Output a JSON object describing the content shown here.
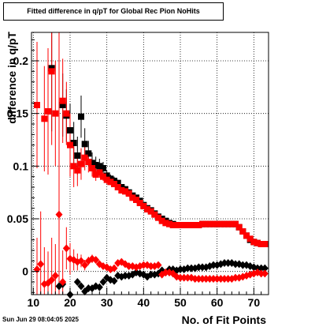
{
  "timestamp": "Sun Jun 29 08:04:05 2025",
  "chart_data": {
    "type": "scatter",
    "title": "Fitted difference in q/pT for Global Rec Pion NoHits",
    "xlabel": "No. of Fit Points",
    "ylabel": "difference in q/pT",
    "xlim": [
      9.5,
      74
    ],
    "ylim": [
      -0.022,
      0.227
    ],
    "xticks": [
      10,
      20,
      30,
      40,
      50,
      60,
      70
    ],
    "yticks": [
      0,
      0.05,
      0.1,
      0.15,
      0.2
    ],
    "ytick_labels": [
      "0",
      "0.05",
      "0.1",
      "0.15",
      "0.2"
    ],
    "grid": true,
    "series": [
      {
        "marker": "square",
        "color": "#000000",
        "x": [
          15,
          18,
          19,
          20,
          21,
          22,
          23,
          24,
          25,
          26,
          27,
          28,
          29,
          30,
          31,
          32,
          33,
          34,
          35,
          36,
          37,
          38,
          39,
          40,
          41,
          42,
          43,
          44,
          45,
          46,
          47,
          48,
          49,
          50,
          51,
          52,
          53,
          54,
          55,
          56,
          57,
          58,
          59,
          60,
          61,
          62,
          63,
          64,
          65,
          66,
          67,
          68,
          69,
          70,
          71,
          72,
          73
        ],
        "y": [
          0.193,
          0.158,
          0.148,
          0.134,
          0.122,
          0.11,
          0.147,
          0.121,
          0.112,
          0.103,
          0.101,
          0.1,
          0.098,
          0.091,
          0.088,
          0.086,
          0.084,
          0.08,
          0.078,
          0.075,
          0.072,
          0.07,
          0.067,
          0.063,
          0.06,
          0.058,
          0.055,
          0.052,
          0.05,
          0.048,
          0.046,
          0.045,
          0.044,
          0.044,
          0.044,
          0.044,
          0.044,
          0.044,
          0.044,
          0.045,
          0.045,
          0.045,
          0.045,
          0.045,
          0.045,
          0.045,
          0.045,
          0.045,
          0.045,
          0.042,
          0.038,
          0.034,
          0.03,
          0.028,
          0.027,
          0.026,
          0.026
        ],
        "yerr": [
          0.06,
          0.03,
          0.025,
          0.025,
          0.02,
          0.018,
          0.02,
          0.015,
          0.012,
          0.01,
          0.008,
          0.007,
          0.006,
          0.005,
          0.004,
          0.004,
          0.003,
          0.003,
          0.003,
          0.003,
          0.002,
          0.002,
          0.002,
          0.002,
          0.002,
          0.002,
          0.002,
          0.002,
          0.002,
          0.002,
          0.002,
          0.002,
          0.002,
          0.002,
          0.002,
          0.002,
          0.002,
          0.002,
          0.002,
          0.002,
          0.002,
          0.002,
          0.002,
          0.002,
          0.002,
          0.002,
          0.002,
          0.002,
          0.002,
          0.002,
          0.002,
          0.002,
          0.002,
          0.002,
          0.002,
          0.002,
          0.002
        ]
      },
      {
        "marker": "square",
        "color": "#ff0000",
        "x": [
          11,
          13,
          14,
          15,
          16,
          18,
          19,
          20,
          21,
          22,
          23,
          24,
          25,
          26,
          27,
          28,
          29,
          30,
          31,
          32,
          33,
          34,
          35,
          36,
          37,
          38,
          39,
          40,
          41,
          42,
          43,
          44,
          45,
          46,
          47,
          48,
          49,
          50,
          51,
          52,
          53,
          54,
          55,
          56,
          57,
          58,
          59,
          60,
          61,
          62,
          63,
          64,
          65,
          66,
          67,
          68,
          69,
          70,
          71,
          72,
          73
        ],
        "y": [
          0.158,
          0.145,
          0.152,
          0.19,
          0.15,
          0.162,
          0.15,
          0.12,
          0.1,
          0.096,
          0.102,
          0.108,
          0.104,
          0.098,
          0.092,
          0.094,
          0.09,
          0.087,
          0.085,
          0.083,
          0.08,
          0.077,
          0.076,
          0.074,
          0.07,
          0.068,
          0.065,
          0.062,
          0.059,
          0.057,
          0.054,
          0.051,
          0.048,
          0.046,
          0.045,
          0.044,
          0.044,
          0.044,
          0.044,
          0.044,
          0.044,
          0.044,
          0.044,
          0.045,
          0.045,
          0.045,
          0.045,
          0.045,
          0.045,
          0.045,
          0.045,
          0.045,
          0.045,
          0.042,
          0.038,
          0.034,
          0.031,
          0.028,
          0.027,
          0.026,
          0.026
        ],
        "yerr": [
          0.06,
          0.05,
          0.06,
          0.07,
          0.05,
          0.04,
          0.03,
          0.03,
          0.02,
          0.015,
          0.015,
          0.012,
          0.01,
          0.008,
          0.006,
          0.005,
          0.004,
          0.004,
          0.003,
          0.003,
          0.003,
          0.003,
          0.002,
          0.002,
          0.002,
          0.002,
          0.002,
          0.002,
          0.002,
          0.002,
          0.002,
          0.002,
          0.002,
          0.002,
          0.002,
          0.002,
          0.002,
          0.002,
          0.002,
          0.002,
          0.002,
          0.002,
          0.002,
          0.002,
          0.002,
          0.002,
          0.002,
          0.002,
          0.002,
          0.002,
          0.002,
          0.002,
          0.002,
          0.002,
          0.002,
          0.002,
          0.002,
          0.002,
          0.002,
          0.002,
          0.002
        ]
      },
      {
        "marker": "diamond",
        "color": "#000000",
        "x": [
          17,
          18,
          20,
          22,
          23,
          24,
          25,
          26,
          27,
          28,
          29,
          30,
          31,
          32,
          33,
          34,
          35,
          36,
          37,
          38,
          39,
          40,
          41,
          42,
          43,
          44,
          45,
          46,
          47,
          48,
          49,
          50,
          51,
          52,
          53,
          54,
          55,
          56,
          57,
          58,
          59,
          60,
          61,
          62,
          63,
          64,
          65,
          66,
          67,
          68,
          69,
          70,
          71,
          72,
          73
        ],
        "y": [
          -0.014,
          -0.012,
          -0.022,
          -0.01,
          -0.014,
          -0.019,
          -0.016,
          -0.016,
          -0.014,
          -0.015,
          -0.01,
          -0.006,
          -0.008,
          -0.009,
          -0.004,
          -0.005,
          -0.004,
          -0.004,
          -0.003,
          -0.001,
          -0.002,
          -0.003,
          -0.005,
          -0.003,
          -0.003,
          -0.002,
          0.001,
          -0.001,
          0.002,
          0.002,
          0.001,
          0.002,
          0.002,
          0.003,
          0.003,
          0.003,
          0.004,
          0.004,
          0.004,
          0.005,
          0.006,
          0.006,
          0.007,
          0.008,
          0.008,
          0.008,
          0.007,
          0.007,
          0.006,
          0.006,
          0.005,
          0.004,
          0.003,
          0.003,
          0.003
        ],
        "yerr": [
          0.003,
          0.004,
          0.003,
          0.002,
          0.002,
          0.002,
          0.002,
          0.002,
          0.002,
          0.002,
          0.002,
          0.002,
          0.002,
          0.001,
          0.001,
          0.001,
          0.001,
          0.001,
          0.001,
          0.001,
          0.001,
          0.001,
          0.001,
          0.001,
          0.001,
          0.001,
          0.001,
          0.001,
          0.001,
          0.001,
          0.001,
          0.001,
          0.001,
          0.001,
          0.001,
          0.001,
          0.001,
          0.001,
          0.001,
          0.001,
          0.001,
          0.001,
          0.001,
          0.001,
          0.001,
          0.001,
          0.001,
          0.001,
          0.001,
          0.001,
          0.001,
          0.001,
          0.001,
          0.001,
          0.001
        ]
      },
      {
        "marker": "diamond",
        "color": "#ff0000",
        "x": [
          11,
          12,
          13,
          14,
          15,
          16,
          17,
          18,
          19,
          20,
          21,
          22,
          23,
          24,
          25,
          26,
          27,
          28,
          29,
          30,
          31,
          32,
          33,
          34,
          35,
          36,
          37,
          38,
          39,
          40,
          41,
          42,
          43,
          44,
          45,
          46,
          47,
          48,
          49,
          50,
          51,
          52,
          53,
          54,
          55,
          56,
          57,
          58,
          59,
          60,
          61,
          62,
          63,
          64,
          65,
          66,
          67,
          68,
          69,
          70,
          71,
          72,
          73
        ],
        "y": [
          0.002,
          0.007,
          -0.012,
          -0.011,
          -0.008,
          -0.004,
          0.054,
          -0.01,
          0.022,
          0.012,
          0.011,
          0.009,
          0.01,
          0.006,
          0.01,
          0.012,
          0.011,
          0.007,
          0.005,
          0.004,
          0.002,
          0.003,
          0.008,
          0.009,
          0.007,
          0.005,
          0.005,
          0.004,
          0.005,
          0.006,
          0.006,
          0.005,
          0.005,
          0.006,
          -0.003,
          -0.001,
          -0.001,
          -0.002,
          -0.005,
          -0.006,
          -0.006,
          -0.006,
          -0.006,
          -0.007,
          -0.007,
          -0.007,
          -0.007,
          -0.007,
          -0.007,
          -0.007,
          -0.007,
          -0.007,
          -0.007,
          -0.007,
          -0.006,
          -0.006,
          -0.005,
          -0.004,
          -0.003,
          -0.002,
          -0.001,
          -0.002,
          -0.002
        ],
        "yerr": [
          0.03,
          0.05,
          0.035,
          0.03,
          0.04,
          0.03,
          0.19,
          0.03,
          0.02,
          0.015,
          0.01,
          0.008,
          0.006,
          0.005,
          0.004,
          0.004,
          0.003,
          0.003,
          0.003,
          0.002,
          0.002,
          0.002,
          0.002,
          0.002,
          0.002,
          0.002,
          0.002,
          0.002,
          0.002,
          0.002,
          0.002,
          0.002,
          0.002,
          0.002,
          0.002,
          0.002,
          0.002,
          0.002,
          0.002,
          0.002,
          0.002,
          0.002,
          0.002,
          0.002,
          0.002,
          0.002,
          0.002,
          0.002,
          0.002,
          0.002,
          0.002,
          0.002,
          0.002,
          0.002,
          0.002,
          0.002,
          0.002,
          0.002,
          0.002,
          0.002,
          0.002,
          0.002,
          0.002
        ]
      }
    ]
  }
}
